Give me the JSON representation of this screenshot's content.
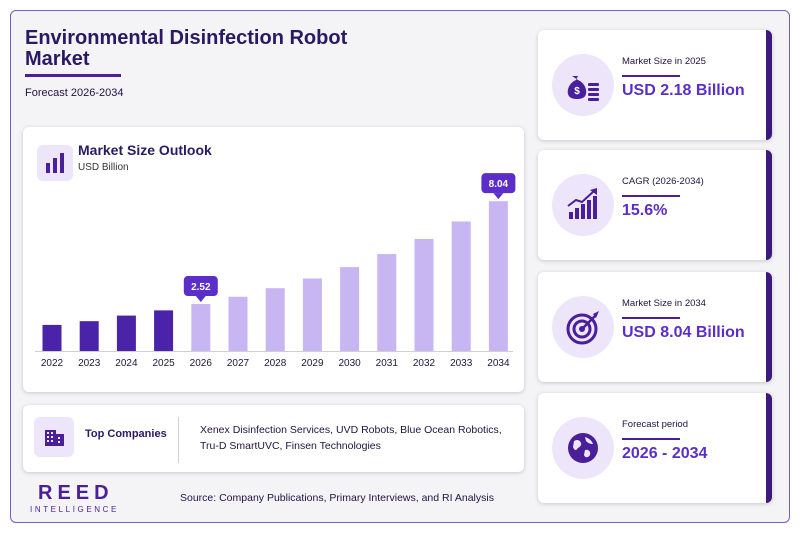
{
  "header": {
    "title": "Environmental Disinfection Robot Market",
    "subtitle": "Forecast 2026-2034"
  },
  "chart_panel": {
    "title": "Market Size Outlook",
    "unit": "USD Billion",
    "icon": "bar-chart-icon"
  },
  "chart_data": {
    "type": "bar",
    "title": "Market Size Outlook",
    "ylabel": "USD Billion",
    "categories": [
      "2022",
      "2023",
      "2024",
      "2025",
      "2026",
      "2027",
      "2028",
      "2029",
      "2030",
      "2031",
      "2032",
      "2033",
      "2034"
    ],
    "values": [
      1.4,
      1.6,
      1.9,
      2.18,
      2.52,
      2.91,
      3.37,
      3.89,
      4.5,
      5.2,
      6.01,
      6.95,
      8.04
    ],
    "labeled_values": {
      "2026": "2.52",
      "2034": "8.04"
    },
    "historical_color": "#4a23a8",
    "forecast_color": "#c7b6f2",
    "label_color": "#5b2ec9",
    "ylim": [
      0,
      8.8
    ],
    "grid": false
  },
  "companies": {
    "label": "Top Companies",
    "icon": "building-icon",
    "list": "Xenex Disinfection Services, UVD Robots, Blue Ocean Robotics, Tru-D SmartUVC, Finsen Technologies"
  },
  "footer": {
    "logo_main": "REED",
    "logo_sub": "INTELLIGENCE",
    "source": "Source: Company Publications, Primary Interviews, and RI Analysis"
  },
  "stats": [
    {
      "label": "Market Size in 2025",
      "value": "USD 2.18 Billion",
      "icon": "money-bag-icon"
    },
    {
      "label": "CAGR (2026-2034)",
      "value": "15.6%",
      "icon": "growth-chart-icon"
    },
    {
      "label": "Market Size in 2034",
      "value": "USD 8.04 Billion",
      "icon": "target-icon"
    },
    {
      "label": "Forecast period",
      "value": "2026 - 2034",
      "icon": "globe-icon"
    }
  ],
  "colors": {
    "brand": "#4a1f99",
    "accent": "#5b2ec9",
    "icon_bg": "#ede6fb"
  }
}
